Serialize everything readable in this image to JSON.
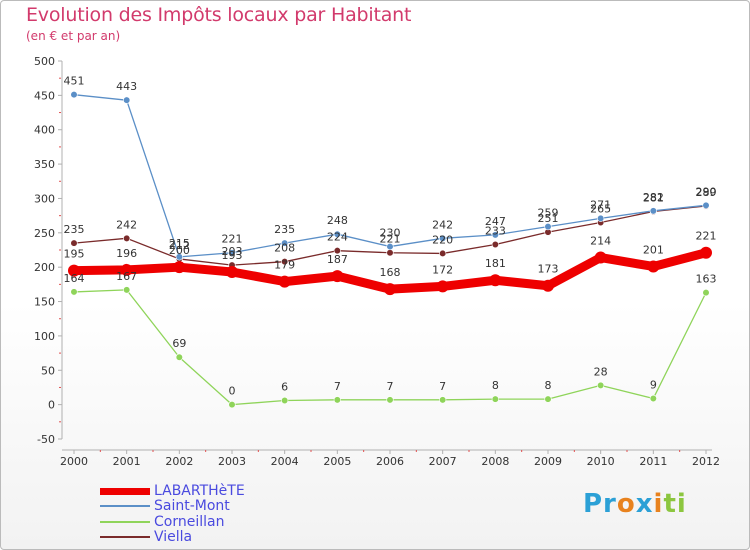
{
  "header": {
    "title": "Evolution des Impôts locaux par Habitant",
    "subtitle": "(en € et par an)"
  },
  "logo": {
    "text_parts": [
      "Pr",
      "o",
      "x",
      "i",
      "ti"
    ],
    "colors": [
      "#2ba0d6",
      "#e8821e",
      "#2ba0d6",
      "#e8821e",
      "#8cc63f"
    ]
  },
  "chart_data": {
    "type": "line",
    "title": "Evolution des Impôts locaux par Habitant",
    "subtitle": "(en € et par an)",
    "xlabel": "",
    "ylabel": "",
    "ylim": [
      -50,
      500
    ],
    "yticks": [
      -50,
      0,
      50,
      100,
      150,
      200,
      250,
      300,
      350,
      400,
      450,
      500
    ],
    "grid": false,
    "legend_position": "bottom-left",
    "x": [
      "2000",
      "2001",
      "2002",
      "2003",
      "2004",
      "2005",
      "2006",
      "2007",
      "2008",
      "2009",
      "2010",
      "2011",
      "2012"
    ],
    "series": [
      {
        "name": "LABARTHèTE",
        "color": "#ee0000",
        "values": [
          195,
          196,
          200,
          193,
          179,
          187,
          168,
          172,
          181,
          173,
          214,
          201,
          221
        ]
      },
      {
        "name": "Saint-Mont",
        "color": "#5b8fc7",
        "values": [
          451,
          443,
          215,
          221,
          235,
          248,
          230,
          242,
          247,
          259,
          271,
          282,
          290
        ]
      },
      {
        "name": "Corneillan",
        "color": "#8fd45a",
        "values": [
          164,
          167,
          69,
          0,
          6,
          7,
          7,
          7,
          8,
          8,
          28,
          9,
          163
        ]
      },
      {
        "name": "Viella",
        "color": "#7a2b2b",
        "values": [
          235,
          242,
          212,
          203,
          208,
          224,
          221,
          220,
          233,
          251,
          265,
          281,
          289
        ]
      }
    ]
  }
}
